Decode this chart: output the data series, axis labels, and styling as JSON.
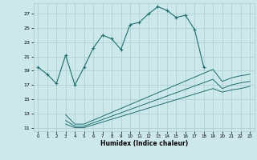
{
  "xlabel": "Humidex (Indice chaleur)",
  "bg_color": "#cce8ea",
  "grid_color": "#aacccc",
  "line_color": "#1a7070",
  "xlim": [
    -0.5,
    23.5
  ],
  "ylim": [
    10.5,
    28.5
  ],
  "xticks": [
    0,
    1,
    2,
    3,
    4,
    5,
    6,
    7,
    8,
    9,
    10,
    11,
    12,
    13,
    14,
    15,
    16,
    17,
    18,
    19,
    20,
    21,
    22,
    23
  ],
  "yticks": [
    11,
    13,
    15,
    17,
    19,
    21,
    23,
    25,
    27
  ],
  "main_x": [
    0,
    1,
    2,
    3,
    4,
    5,
    6,
    7,
    8,
    9,
    10,
    11,
    12,
    13,
    14,
    15,
    16,
    17,
    18
  ],
  "main_y": [
    19.5,
    18.5,
    17.2,
    21.2,
    17.0,
    19.5,
    22.2,
    24.0,
    23.5,
    22.0,
    25.5,
    25.8,
    27.0,
    28.0,
    27.5,
    26.5,
    26.8,
    24.8,
    19.5
  ],
  "line2_x": [
    3,
    4,
    5,
    19,
    20,
    21,
    22,
    23
  ],
  "line2_y": [
    12.8,
    11.5,
    11.5,
    19.2,
    17.5,
    18.0,
    18.3,
    18.5
  ],
  "line3_x": [
    3,
    4,
    5,
    19,
    20,
    21,
    22,
    23
  ],
  "line3_y": [
    12.0,
    11.2,
    11.2,
    17.8,
    16.5,
    17.0,
    17.3,
    17.5
  ],
  "line4_x": [
    3,
    4,
    5,
    19,
    20,
    21,
    22,
    23
  ],
  "line4_y": [
    11.5,
    11.0,
    11.0,
    16.5,
    16.0,
    16.3,
    16.5,
    16.8
  ]
}
